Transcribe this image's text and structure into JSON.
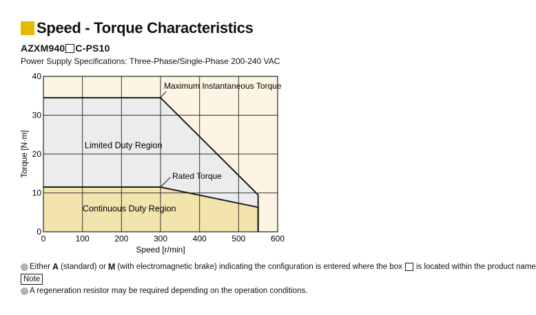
{
  "header": {
    "title": "Speed - Torque Characteristics",
    "model_prefix": "AZXM940",
    "model_suffix": "C-PS10",
    "spec": "Power Supply Specifications: Three-Phase/Single-Phase 200-240 VAC",
    "accent_color": "#e6b800"
  },
  "chart_data": {
    "type": "area",
    "title": "",
    "xlabel": "Speed [r/min]",
    "ylabel": "Torque [N·m]",
    "xlim": [
      0,
      600
    ],
    "ylim": [
      0,
      40
    ],
    "xticks": [
      0,
      100,
      200,
      300,
      400,
      500,
      600
    ],
    "yticks": [
      0,
      10,
      20,
      30,
      40
    ],
    "grid": true,
    "series": [
      {
        "name": "Maximum Instantaneous Torque",
        "x": [
          0,
          300,
          550,
          550
        ],
        "y": [
          34.5,
          34.5,
          9.5,
          0
        ]
      },
      {
        "name": "Rated Torque",
        "x": [
          0,
          300,
          550,
          550
        ],
        "y": [
          11.5,
          11.5,
          6.3,
          0
        ]
      }
    ],
    "annotations": {
      "max_torque": "Maximum Instantaneous Torque",
      "rated_torque": "Rated Torque",
      "limited_region": "Limited Duty Region",
      "continuous_region": "Continuous Duty Region"
    },
    "colors": {
      "background": "#fcf5e3",
      "limited": "#ececee",
      "continuous": "#f3e4ae",
      "line": "#1a1a1a",
      "grid": "#333333"
    }
  },
  "notes": {
    "line1_a": "Either",
    "line1_b": "A",
    "line1_c": "(standard) or",
    "line1_d": "M",
    "line1_e": "(with electromagnetic brake) indicating the configuration is entered where the box",
    "line1_f": "is located within the product name.",
    "note_label": "Note",
    "line2": "A regeneration resistor may be required depending on the operation conditions."
  }
}
